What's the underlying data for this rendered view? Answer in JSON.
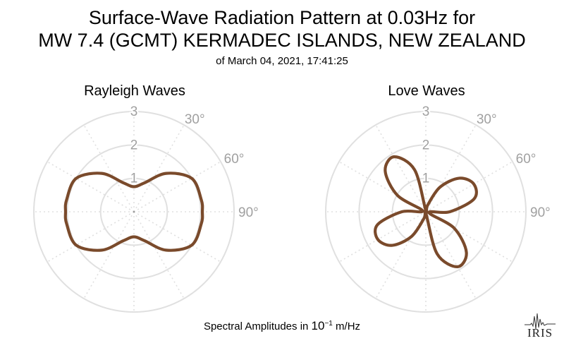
{
  "title": {
    "line1": "Surface-Wave Radiation Pattern at 0.03Hz for",
    "line2": "MW 7.4 (GCMT) KERMADEC ISLANDS, NEW ZEALAND",
    "line3": "of March 04, 2021, 17:41:25"
  },
  "colors": {
    "pattern": "#7a4a2b",
    "grid": "#e0e0e0",
    "tick_label": "#a0a0a0"
  },
  "chart_data": [
    {
      "type": "polar",
      "title": "Rayleigh Waves",
      "r_ticks": [
        "1",
        "2",
        "3"
      ],
      "angle_ticks": [
        "30°",
        "60°",
        "90°"
      ],
      "rlim": [
        0,
        3
      ],
      "angle_unit": "degrees clockwise from north",
      "theta": [
        0,
        20,
        40,
        60,
        80,
        90,
        100,
        120,
        140,
        160,
        180,
        200,
        220,
        240,
        260,
        270,
        280,
        300,
        320,
        340
      ],
      "r": [
        0.75,
        0.92,
        1.5,
        2.0,
        2.05,
        2.05,
        2.05,
        2.0,
        1.5,
        0.92,
        0.75,
        0.92,
        1.5,
        2.0,
        2.05,
        2.05,
        2.05,
        2.0,
        1.5,
        0.92
      ]
    },
    {
      "type": "polar",
      "title": "Love Waves",
      "r_ticks": [
        "1",
        "2",
        "3"
      ],
      "angle_ticks": [
        "30°",
        "60°",
        "90°"
      ],
      "rlim": [
        0,
        3
      ],
      "angle_unit": "degrees clockwise from north",
      "theta": [
        0,
        15,
        30,
        45,
        60,
        75,
        90,
        105,
        120,
        135,
        150,
        165,
        180,
        195,
        210,
        225,
        240,
        255,
        270,
        285,
        300,
        315,
        330,
        345
      ],
      "r": [
        0.04,
        0.2,
        0.85,
        1.42,
        1.66,
        1.5,
        0.72,
        0.1,
        0.98,
        1.72,
        1.9,
        1.3,
        0.04,
        0.2,
        0.85,
        1.42,
        1.66,
        1.5,
        0.72,
        0.1,
        0.98,
        1.72,
        1.9,
        1.3
      ]
    }
  ],
  "footer": {
    "label_prefix": "Spectral Amplitudes in",
    "unit_base": "10",
    "unit_exponent": "−1",
    "unit_suffix": "m/Hz"
  },
  "logo": {
    "text": "IRIS"
  }
}
